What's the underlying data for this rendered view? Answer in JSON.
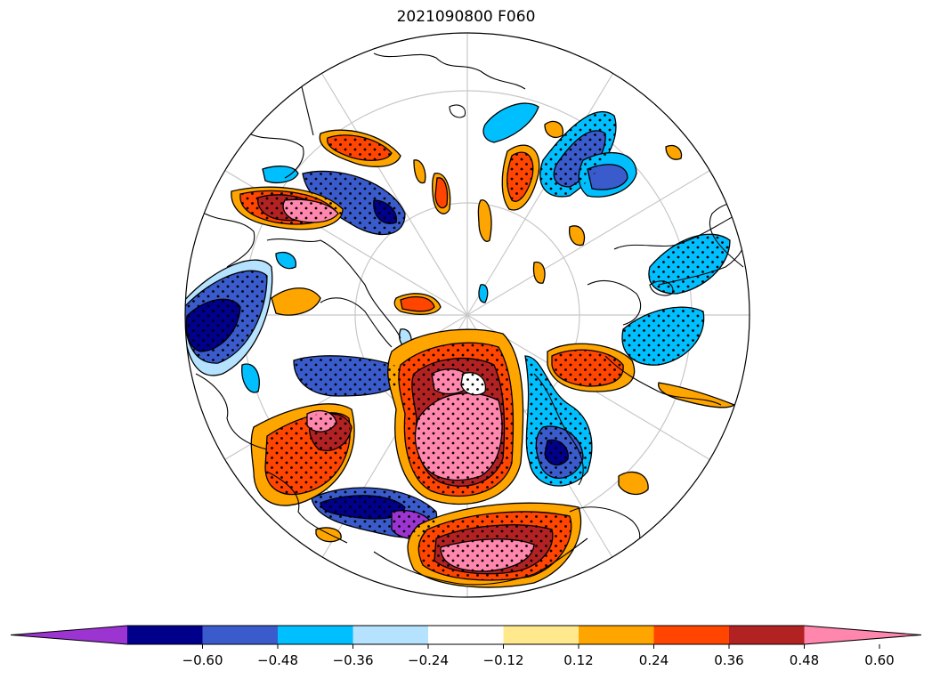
{
  "title": "2021090800 F060",
  "map": {
    "projection": "north-polar-stereographic",
    "features": [
      "coastlines",
      "graticule",
      "filled-contours",
      "stippling"
    ]
  },
  "colorbar": {
    "extend": "both",
    "colors": [
      "#9b34d1",
      "#00008b",
      "#3a5bcc",
      "#00bfff",
      "#b4e2ff",
      "#ffffff",
      "#ffe98c",
      "#ffa500",
      "#ff4500",
      "#b22222",
      "#ff86ac"
    ],
    "ticks": [
      "−0.60",
      "−0.48",
      "−0.36",
      "−0.24",
      "−0.12",
      "0.12",
      "0.24",
      "0.36",
      "0.48",
      "0.60"
    ]
  }
}
